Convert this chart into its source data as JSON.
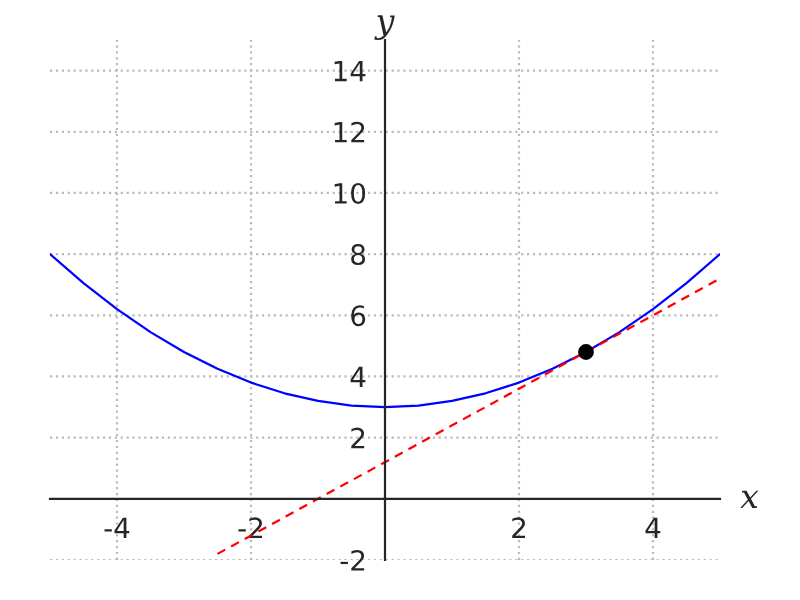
{
  "chart_data": {
    "type": "line",
    "xlabel": "x",
    "ylabel": "y",
    "xlim": [
      -5,
      5
    ],
    "ylim": [
      -2,
      15
    ],
    "xticks": [
      -4,
      -2,
      2,
      4
    ],
    "yticks": [
      -2,
      2,
      4,
      6,
      8,
      10,
      12,
      14
    ],
    "grid": true,
    "legend": false,
    "series": [
      {
        "color": "#0000ff",
        "line_style": "solid",
        "x": [
          -5,
          -4.5,
          -4,
          -3.5,
          -3,
          -2.5,
          -2,
          -1.5,
          -1,
          -0.5,
          0,
          0.5,
          1,
          1.5,
          2,
          2.5,
          3,
          3.5,
          4,
          4.5,
          5
        ],
        "values": [
          8,
          7.05,
          6.2,
          5.45,
          4.8,
          4.25,
          3.8,
          3.45,
          3.2,
          3.05,
          3,
          3.05,
          3.2,
          3.45,
          3.8,
          4.25,
          4.8,
          5.45,
          6.2,
          7.05,
          8
        ]
      },
      {
        "type": "line",
        "color": "#ff0000",
        "line_style": "dashed",
        "x": [
          -2.5,
          5
        ],
        "values": [
          -1.8,
          7.2
        ]
      },
      {
        "type": "scatter",
        "color": "#000000",
        "marker": "circle",
        "x": [
          3
        ],
        "values": [
          4.8
        ]
      }
    ]
  }
}
